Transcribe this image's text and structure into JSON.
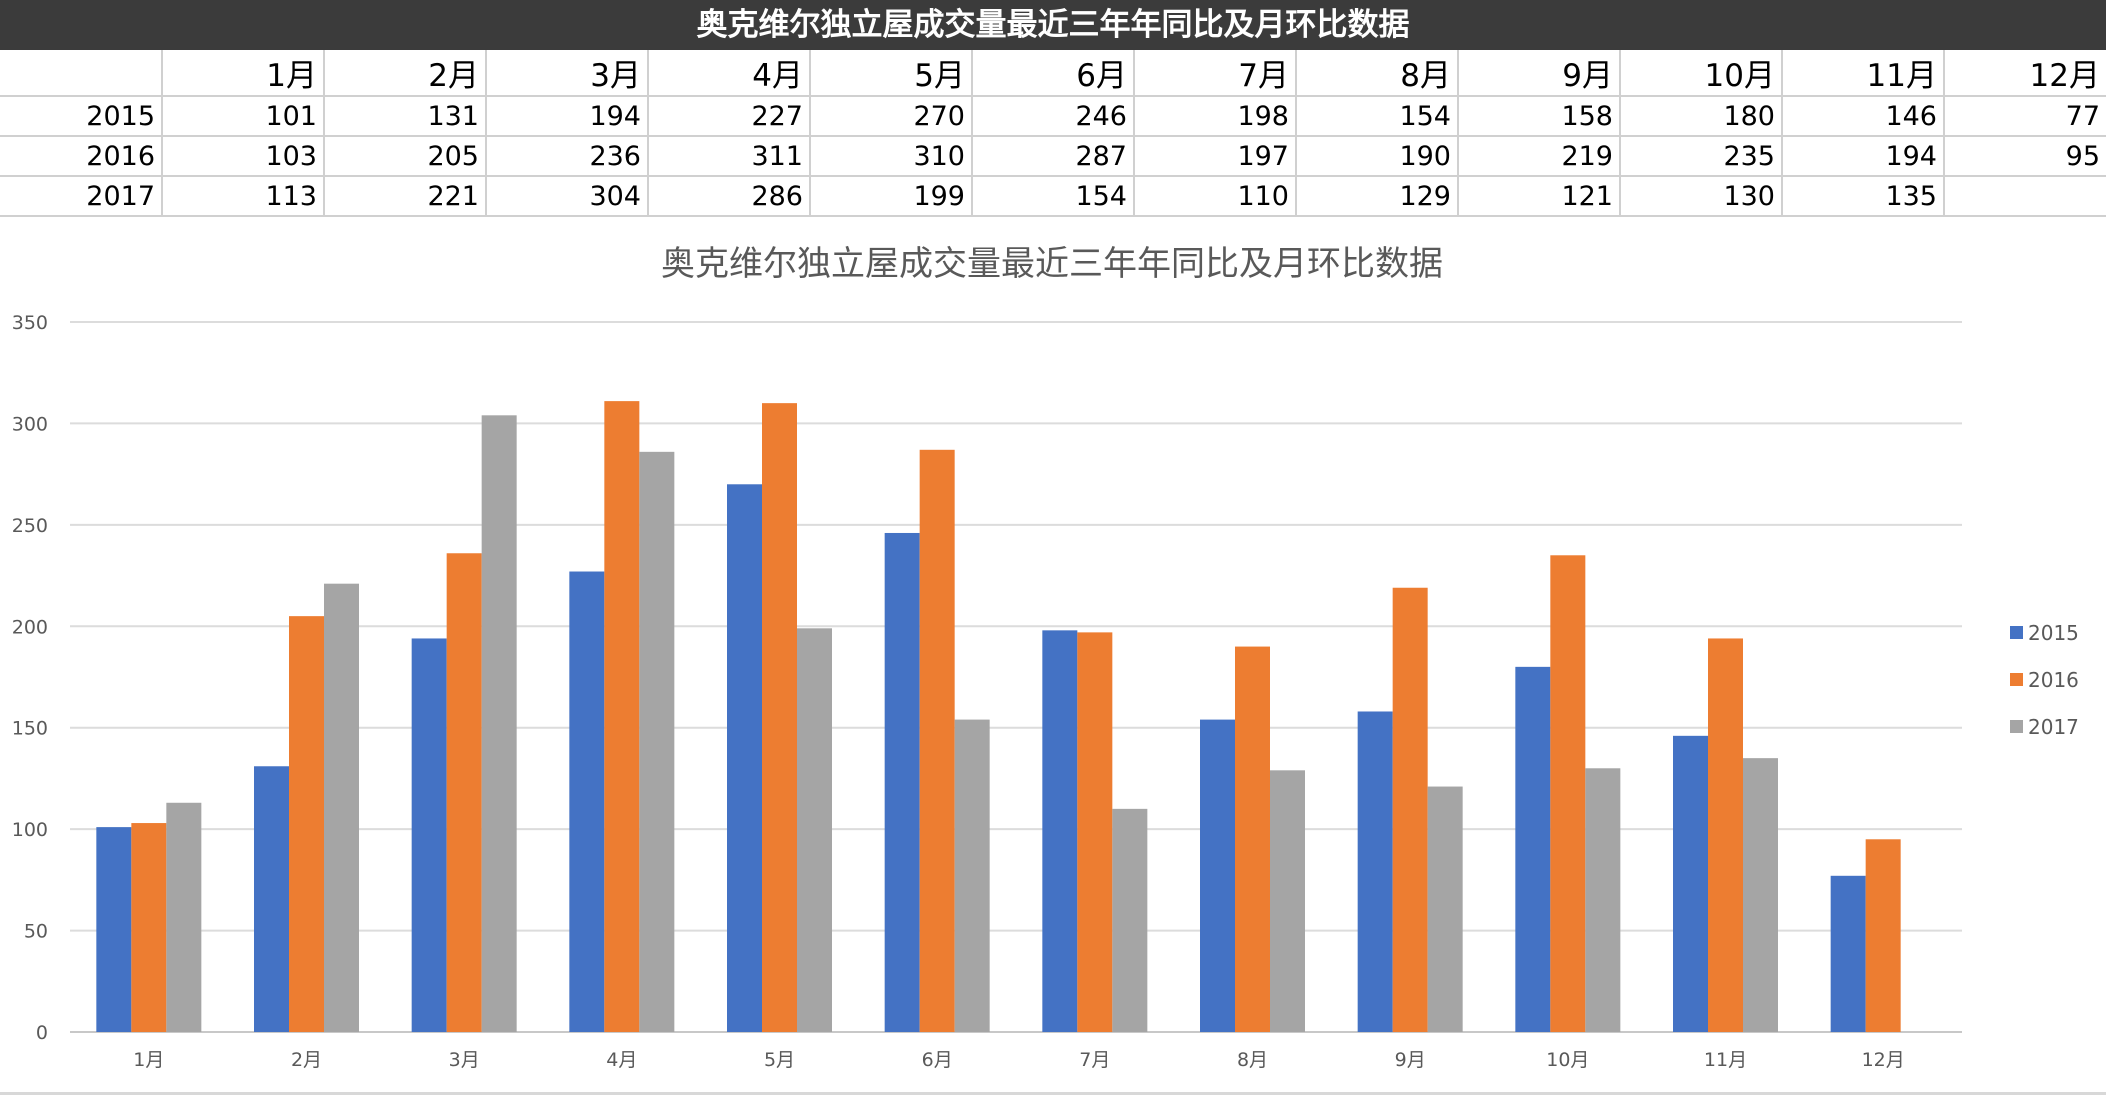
{
  "sheet": {
    "title": "奥克维尔独立屋成交量最近三年年同比及月环比数据",
    "months": [
      "1月",
      "2月",
      "3月",
      "4月",
      "5月",
      "6月",
      "7月",
      "8月",
      "9月",
      "10月",
      "11月",
      "12月"
    ],
    "rows": [
      {
        "year": "2015",
        "values": [
          "101",
          "131",
          "194",
          "227",
          "270",
          "246",
          "198",
          "154",
          "158",
          "180",
          "146",
          "77"
        ]
      },
      {
        "year": "2016",
        "values": [
          "103",
          "205",
          "236",
          "311",
          "310",
          "287",
          "197",
          "190",
          "219",
          "235",
          "194",
          "95"
        ]
      },
      {
        "year": "2017",
        "values": [
          "113",
          "221",
          "304",
          "286",
          "199",
          "154",
          "110",
          "129",
          "121",
          "130",
          "135",
          ""
        ]
      }
    ]
  },
  "chart_data": {
    "type": "bar",
    "title": "奥克维尔独立屋成交量最近三年年同比及月环比数据",
    "categories": [
      "1月",
      "2月",
      "3月",
      "4月",
      "5月",
      "6月",
      "7月",
      "8月",
      "9月",
      "10月",
      "11月",
      "12月"
    ],
    "series": [
      {
        "name": "2015",
        "color": "#4472c4",
        "values": [
          101,
          131,
          194,
          227,
          270,
          246,
          198,
          154,
          158,
          180,
          146,
          77
        ]
      },
      {
        "name": "2016",
        "color": "#ed7d31",
        "values": [
          103,
          205,
          236,
          311,
          310,
          287,
          197,
          190,
          219,
          235,
          194,
          95
        ]
      },
      {
        "name": "2017",
        "color": "#a5a5a5",
        "values": [
          113,
          221,
          304,
          286,
          199,
          154,
          110,
          129,
          121,
          130,
          135,
          null
        ]
      }
    ],
    "ylim": [
      0,
      350
    ],
    "yticks": [
      0,
      50,
      100,
      150,
      200,
      250,
      300,
      350
    ],
    "grid": true,
    "legend": "right"
  }
}
